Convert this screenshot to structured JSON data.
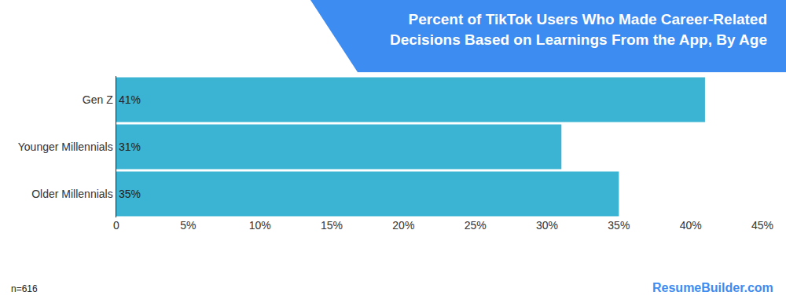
{
  "chart_data": {
    "type": "bar",
    "title": "Percent of TikTok Users Who Made Career-Related Decisions Based on Learnings From the App, By Age",
    "orientation": "horizontal",
    "categories": [
      "Gen Z",
      "Younger Millennials",
      "Older Millennials"
    ],
    "values": [
      41,
      31,
      35
    ],
    "value_labels": [
      "41%",
      "31%",
      "35%"
    ],
    "data_labels": true,
    "color": "#3bb3d3",
    "xlim": [
      0,
      45
    ],
    "xticks": [
      0,
      {
        "value": 5,
        "label": "5%"
      },
      {
        "value": 10,
        "label": "10%"
      },
      {
        "value": 15,
        "label": "15%"
      },
      {
        "value": 20,
        "label": "20%"
      },
      {
        "value": 25,
        "label": "25%"
      },
      {
        "value": 30,
        "label": "30%"
      },
      {
        "value": 35,
        "label": "35%"
      },
      {
        "value": 40,
        "label": "40%"
      },
      {
        "value": 45,
        "label": "45%"
      }
    ],
    "grid": false,
    "annotations": [
      {
        "text": "n=616"
      },
      {
        "text": "ResumeBuilder.com"
      }
    ]
  }
}
